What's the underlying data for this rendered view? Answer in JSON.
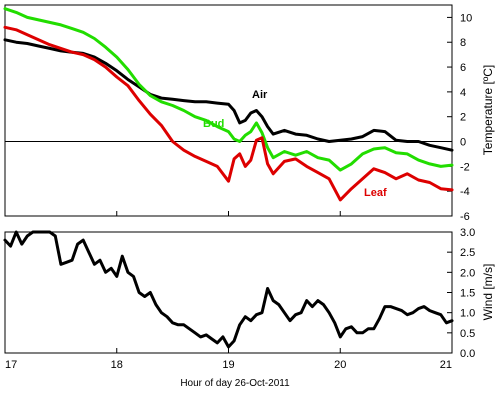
{
  "chart_data": [
    {
      "type": "line",
      "panel": "temperature",
      "ylabel": "Temperature [ºC]",
      "ylim": [
        -6,
        11
      ],
      "yticks": [
        -6,
        -4,
        -2,
        0,
        2,
        4,
        6,
        8,
        10
      ],
      "xlim": [
        17,
        21
      ],
      "zero_line": true,
      "series": [
        {
          "name": "Air",
          "color": "#000000",
          "x": [
            17.0,
            17.1,
            17.2,
            17.3,
            17.4,
            17.5,
            17.6,
            17.7,
            17.8,
            17.9,
            18.0,
            18.1,
            18.2,
            18.3,
            18.4,
            18.5,
            18.6,
            18.7,
            18.8,
            18.9,
            19.0,
            19.05,
            19.1,
            19.15,
            19.2,
            19.25,
            19.3,
            19.35,
            19.4,
            19.5,
            19.6,
            19.7,
            19.8,
            19.9,
            20.0,
            20.1,
            20.2,
            20.3,
            20.4,
            20.5,
            20.6,
            20.7,
            20.8,
            20.9,
            21.0
          ],
          "y": [
            8.2,
            8.0,
            7.9,
            7.7,
            7.5,
            7.3,
            7.2,
            7.1,
            6.8,
            6.3,
            5.7,
            5.0,
            4.4,
            3.8,
            3.5,
            3.4,
            3.3,
            3.2,
            3.2,
            3.1,
            3.0,
            2.5,
            1.5,
            1.7,
            2.3,
            2.5,
            2.0,
            1.2,
            0.6,
            0.9,
            0.6,
            0.5,
            0.2,
            0.0,
            0.1,
            0.2,
            0.4,
            0.9,
            0.8,
            0.1,
            0.0,
            0.0,
            -0.3,
            -0.5,
            -0.7
          ]
        },
        {
          "name": "Bud",
          "color": "#22dd00",
          "x": [
            17.0,
            17.1,
            17.2,
            17.3,
            17.4,
            17.5,
            17.6,
            17.7,
            17.8,
            17.9,
            18.0,
            18.1,
            18.2,
            18.3,
            18.4,
            18.5,
            18.6,
            18.7,
            18.8,
            18.9,
            19.0,
            19.05,
            19.1,
            19.15,
            19.2,
            19.25,
            19.3,
            19.35,
            19.4,
            19.5,
            19.6,
            19.7,
            19.8,
            19.9,
            20.0,
            20.1,
            20.2,
            20.3,
            20.4,
            20.5,
            20.6,
            20.7,
            20.8,
            20.9,
            21.0
          ],
          "y": [
            10.7,
            10.4,
            10.0,
            9.8,
            9.6,
            9.4,
            9.1,
            8.8,
            8.3,
            7.6,
            6.8,
            5.8,
            4.6,
            3.7,
            3.2,
            2.9,
            2.5,
            2.0,
            1.7,
            1.2,
            0.8,
            0.2,
            0.0,
            0.5,
            0.8,
            1.5,
            0.7,
            -0.5,
            -1.3,
            -0.8,
            -1.1,
            -0.8,
            -1.3,
            -1.5,
            -2.3,
            -1.8,
            -1.0,
            -0.6,
            -0.5,
            -0.9,
            -1.0,
            -1.5,
            -1.8,
            -2.0,
            -1.9
          ]
        },
        {
          "name": "Leaf",
          "color": "#dd0000",
          "x": [
            17.0,
            17.1,
            17.2,
            17.3,
            17.4,
            17.5,
            17.6,
            17.7,
            17.8,
            17.9,
            18.0,
            18.1,
            18.2,
            18.3,
            18.4,
            18.5,
            18.6,
            18.7,
            18.8,
            18.9,
            19.0,
            19.05,
            19.1,
            19.15,
            19.2,
            19.25,
            19.3,
            19.35,
            19.4,
            19.5,
            19.6,
            19.7,
            19.8,
            19.9,
            20.0,
            20.1,
            20.2,
            20.3,
            20.4,
            20.5,
            20.6,
            20.7,
            20.8,
            20.9,
            21.0
          ],
          "y": [
            9.2,
            9.0,
            8.6,
            8.2,
            7.8,
            7.5,
            7.2,
            7.0,
            6.6,
            6.0,
            5.2,
            4.5,
            3.3,
            2.2,
            1.3,
            0.0,
            -0.7,
            -1.2,
            -1.6,
            -2.0,
            -3.2,
            -1.4,
            -1.0,
            -2.0,
            -1.5,
            0.1,
            0.3,
            -1.8,
            -2.6,
            -1.6,
            -1.4,
            -2.0,
            -2.5,
            -3.0,
            -4.7,
            -3.8,
            -3.0,
            -2.2,
            -2.5,
            -3.0,
            -2.6,
            -3.1,
            -3.3,
            -3.8,
            -3.9
          ]
        }
      ]
    },
    {
      "type": "line",
      "panel": "wind",
      "ylabel": "Wind [m/s]",
      "ylim": [
        0.0,
        3.0
      ],
      "yticks": [
        0.0,
        0.5,
        1.0,
        1.5,
        2.0,
        2.5,
        3.0
      ],
      "xlabel": "Hour of day 26-Oct-2011",
      "xlim": [
        17,
        21
      ],
      "xticks": [
        17,
        18,
        19,
        20,
        21
      ],
      "series": [
        {
          "color": "#000000",
          "x": [
            17.0,
            17.05,
            17.1,
            17.15,
            17.2,
            17.25,
            17.3,
            17.35,
            17.4,
            17.45,
            17.5,
            17.55,
            17.6,
            17.65,
            17.7,
            17.75,
            17.8,
            17.85,
            17.9,
            17.95,
            18.0,
            18.05,
            18.1,
            18.15,
            18.2,
            18.25,
            18.3,
            18.35,
            18.4,
            18.45,
            18.5,
            18.55,
            18.6,
            18.65,
            18.7,
            18.75,
            18.8,
            18.85,
            18.9,
            18.95,
            19.0,
            19.05,
            19.1,
            19.15,
            19.2,
            19.25,
            19.3,
            19.35,
            19.4,
            19.45,
            19.5,
            19.55,
            19.6,
            19.65,
            19.7,
            19.75,
            19.8,
            19.85,
            19.9,
            19.95,
            20.0,
            20.05,
            20.1,
            20.15,
            20.2,
            20.25,
            20.3,
            20.35,
            20.4,
            20.45,
            20.5,
            20.55,
            20.6,
            20.65,
            20.7,
            20.75,
            20.8,
            20.85,
            20.9,
            20.95,
            21.0
          ],
          "y": [
            2.8,
            2.65,
            3.0,
            2.7,
            2.9,
            3.0,
            3.0,
            3.0,
            3.0,
            2.9,
            2.2,
            2.25,
            2.3,
            2.7,
            2.8,
            2.5,
            2.2,
            2.3,
            2.0,
            2.1,
            1.9,
            2.4,
            2.0,
            1.9,
            1.5,
            1.4,
            1.5,
            1.2,
            1.0,
            0.9,
            0.75,
            0.7,
            0.7,
            0.6,
            0.5,
            0.4,
            0.45,
            0.35,
            0.25,
            0.4,
            0.15,
            0.3,
            0.7,
            0.9,
            0.8,
            0.95,
            1.0,
            1.6,
            1.3,
            1.2,
            1.0,
            0.8,
            0.95,
            1.0,
            1.3,
            1.15,
            1.3,
            1.2,
            1.0,
            0.75,
            0.4,
            0.6,
            0.65,
            0.5,
            0.5,
            0.6,
            0.6,
            0.85,
            1.15,
            1.15,
            1.1,
            1.05,
            0.95,
            1.0,
            1.1,
            1.15,
            1.05,
            1.0,
            0.95,
            0.75,
            0.8
          ]
        }
      ]
    }
  ]
}
